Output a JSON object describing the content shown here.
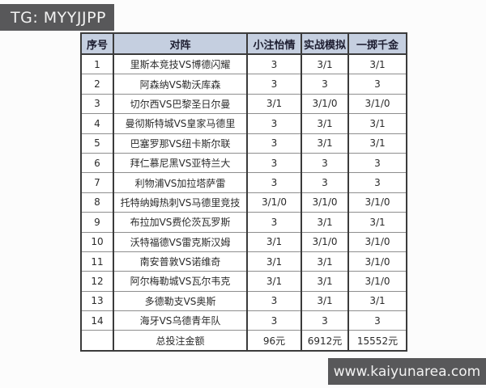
{
  "badges": {
    "telegram": "TG: MYYJJPP",
    "website": "www.kaiyunarea.com"
  },
  "colors": {
    "badge_bg": "#58585a",
    "badge_text": "#f2f2f2",
    "header_bg": "#c5cfe0",
    "border_dark": "#3b3b3b",
    "border_light": "#8e8e8e"
  },
  "table": {
    "columns": [
      "序号",
      "对阵",
      "小注怡情",
      "实战模拟",
      "一掷千金"
    ],
    "rows": [
      [
        "1",
        "里斯本竞技VS博德闪耀",
        "3",
        "3/1",
        "3/1"
      ],
      [
        "2",
        "阿森纳VS勒沃库森",
        "3",
        "3",
        "3"
      ],
      [
        "3",
        "切尔西VS巴黎圣日尔曼",
        "3/1",
        "3/1/0",
        "3/1/0"
      ],
      [
        "4",
        "曼彻斯特城VS皇家马德里",
        "3",
        "3/1",
        "3/1"
      ],
      [
        "5",
        "巴塞罗那VS纽卡斯尔联",
        "3",
        "3/1",
        "3/1"
      ],
      [
        "6",
        "拜仁慕尼黑VS亚特兰大",
        "3",
        "3",
        "3"
      ],
      [
        "7",
        "利物浦VS加拉塔萨雷",
        "3",
        "3",
        "3"
      ],
      [
        "8",
        "托特纳姆热刺VS马德里竞技",
        "3/1/0",
        "3/1/0",
        "3/1/0"
      ],
      [
        "9",
        "布拉加VS费伦茨瓦罗斯",
        "3",
        "3/1",
        "3/1"
      ],
      [
        "10",
        "沃特福德VS雷克斯汉姆",
        "3/1",
        "3/1/0",
        "3/1/0"
      ],
      [
        "11",
        "南安普敦VS诺维奇",
        "3/1",
        "3/1",
        "3/1/0"
      ],
      [
        "12",
        "阿尔梅勒城VS瓦尔韦克",
        "3/1",
        "3/1",
        "3/1/0"
      ],
      [
        "13",
        "多德勒支VS奥斯",
        "3",
        "3/1",
        "3/1"
      ],
      [
        "14",
        "海牙VS乌德青年队",
        "3",
        "3",
        "3"
      ]
    ],
    "total_row": [
      "",
      "总投注金额",
      "96元",
      "6912元",
      "15552元"
    ]
  }
}
